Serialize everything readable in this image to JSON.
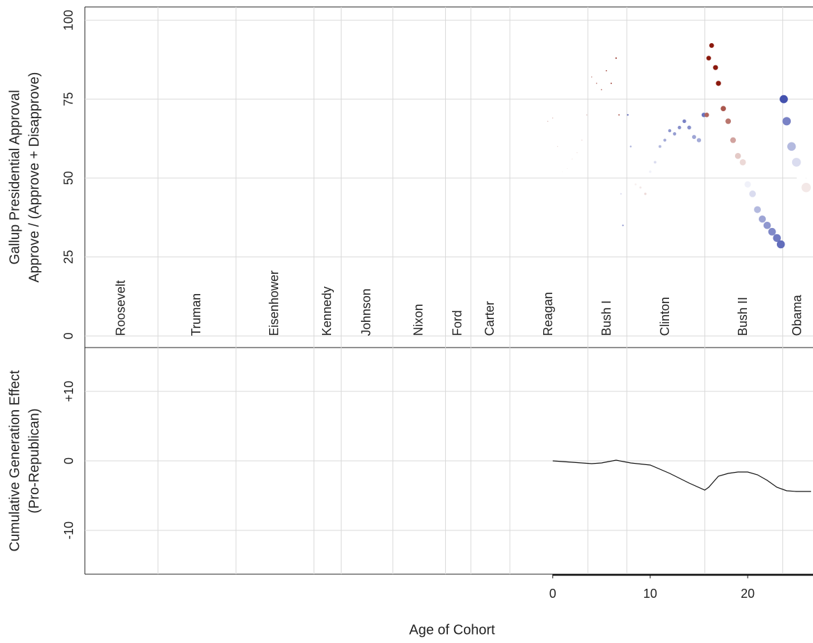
{
  "chart_data": [
    {
      "type": "scatter",
      "ylabel": [
        "Gallup Presidential Approval",
        "Approve / (Approve + Disapprove)"
      ],
      "xlim": [
        -48,
        26.7
      ],
      "ylim": [
        -3.7,
        104.2
      ],
      "yticks": [
        0,
        25,
        50,
        75,
        100
      ],
      "grid": true,
      "boundaries": [
        -40.5,
        -32.5,
        -24.5,
        -21.7,
        -16.4,
        -11,
        -8.4,
        -4.4,
        3.6,
        7.6,
        15.6,
        23.6
      ],
      "presidents": [
        "Roosevelt",
        "Truman",
        "Eisenhower",
        "Kennedy",
        "Johnson",
        "Nixon",
        "Ford",
        "Carter",
        "Reagan",
        "Bush I",
        "Clinton",
        "Bush II",
        "Obama"
      ],
      "party": [
        "D",
        "D",
        "R",
        "D",
        "D",
        "R",
        "R",
        "D",
        "R",
        "R",
        "D",
        "R",
        "D"
      ],
      "colors": {
        "R": "#8b1a0e",
        "D": "#1f2f9e"
      },
      "x": [
        -0.5,
        0,
        0.5,
        1,
        1.5,
        2,
        2.5,
        3,
        3.5,
        4,
        4.5,
        5,
        5.5,
        6,
        6.5,
        6.8,
        7,
        7.2,
        7.7,
        8,
        8.5,
        9,
        9.5,
        10,
        10.5,
        11,
        11.5,
        12,
        12.5,
        13,
        13.5,
        14,
        14.5,
        15,
        15.5,
        15.8,
        16,
        16.3,
        16.7,
        17,
        17.5,
        18,
        18.5,
        19,
        19.5,
        20,
        20.5,
        21,
        21.5,
        22,
        22.5,
        23,
        23.4,
        23.7,
        24,
        24.5,
        25,
        25.5,
        26,
        26.5
      ],
      "values": [
        68,
        69,
        60,
        52,
        53,
        56,
        58,
        62,
        70,
        82,
        80,
        78,
        84,
        80,
        88,
        70,
        45,
        35,
        70,
        60,
        48,
        47,
        45,
        52,
        55,
        60,
        62,
        65,
        64,
        66,
        68,
        66,
        63,
        62,
        70,
        70,
        88,
        92,
        85,
        80,
        72,
        68,
        62,
        57,
        55,
        48,
        45,
        40,
        37,
        35,
        33,
        31,
        29,
        75,
        68,
        60,
        55,
        50,
        47,
        50
      ]
    },
    {
      "type": "line",
      "ylabel": [
        "Cumulative Generation Effect",
        "(Pro-Republican)"
      ],
      "xlabel": "Age of Cohort",
      "xlim": [
        -48,
        26.7
      ],
      "xticks": [
        0,
        10,
        20
      ],
      "ylim": [
        -16.3,
        16.3
      ],
      "yticks": [
        {
          "value": 10,
          "label": "+10"
        },
        0,
        -10
      ],
      "grid": true,
      "color": "#111111",
      "x": [
        0,
        2,
        4,
        5,
        6.5,
        8,
        10,
        12,
        14,
        15.6,
        16,
        17,
        18,
        19,
        20,
        21,
        22,
        23,
        24,
        25,
        26.5
      ],
      "values": [
        0,
        -0.2,
        -0.4,
        -0.3,
        0.1,
        -0.3,
        -0.6,
        -1.8,
        -3.2,
        -4.2,
        -3.8,
        -2.2,
        -1.8,
        -1.6,
        -1.6,
        -2,
        -2.8,
        -3.8,
        -4.3,
        -4.4,
        -4.4
      ]
    }
  ]
}
